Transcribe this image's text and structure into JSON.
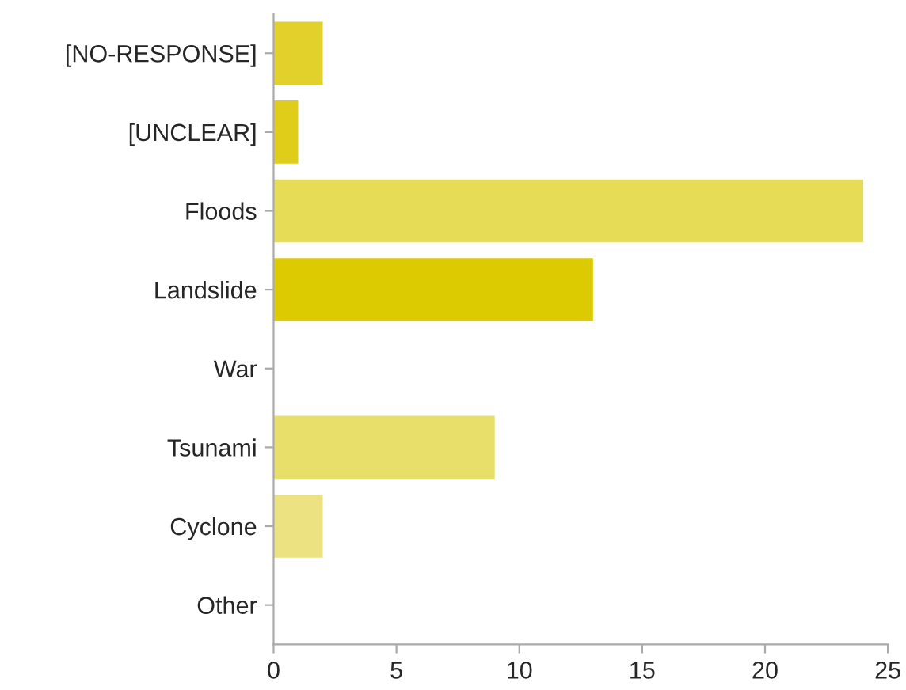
{
  "chart_data": {
    "type": "bar",
    "orientation": "horizontal",
    "categories": [
      "[NO-RESPONSE]",
      "[UNCLEAR]",
      "Floods",
      "Landslide",
      "War",
      "Tsunami",
      "Cyclone",
      "Other"
    ],
    "values": [
      2,
      1,
      24,
      13,
      0,
      9,
      2,
      0
    ],
    "colors": [
      "#e2d12a",
      "#e0cd1a",
      "#e6dc55",
      "#dccb00",
      "#e4d640",
      "#e8df6a",
      "#ece282",
      "#efe797"
    ],
    "xlim": [
      0,
      25
    ],
    "xticks": [
      0,
      5,
      10,
      15,
      20,
      25
    ],
    "grid": false
  }
}
